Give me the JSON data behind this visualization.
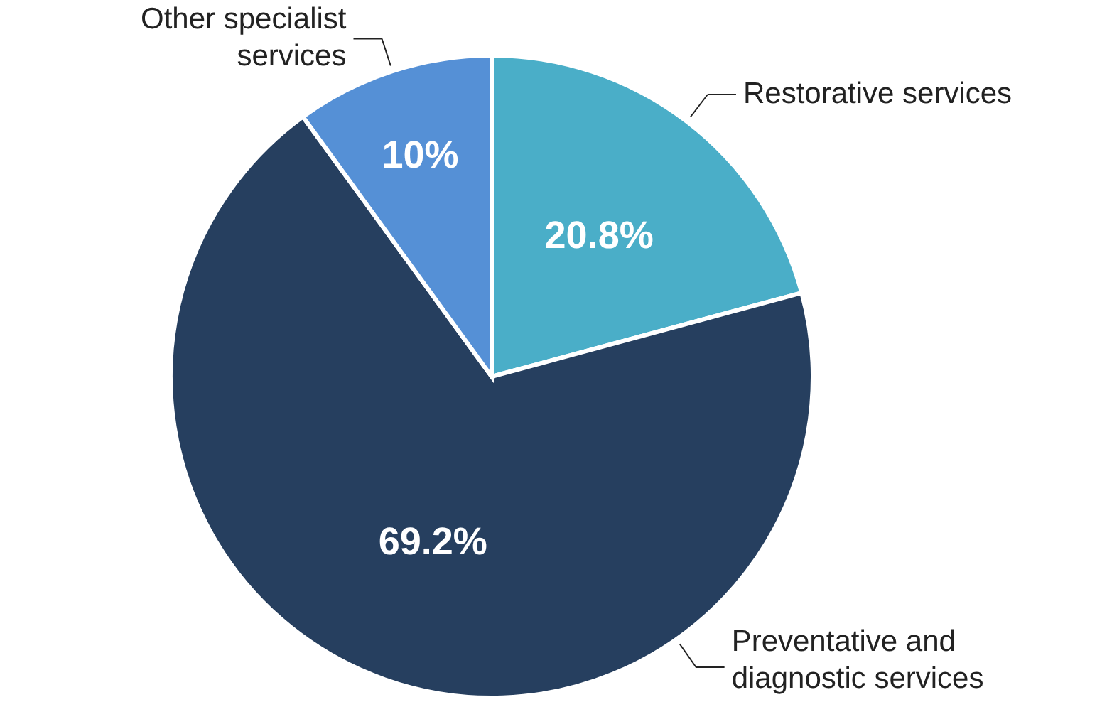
{
  "chart_data": {
    "type": "pie",
    "categories": [
      "Restorative services",
      "Preventative and diagnostic services",
      "Other specialist services"
    ],
    "values": [
      20.8,
      69.2,
      10
    ],
    "colors": [
      "#4aaec8",
      "#263f5f",
      "#5590d6"
    ],
    "value_labels": [
      "20.8%",
      "69.2%",
      "10%"
    ]
  }
}
